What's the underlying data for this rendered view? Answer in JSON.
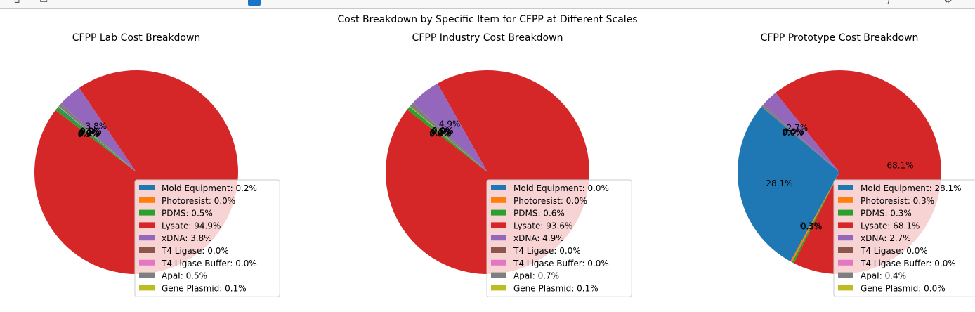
{
  "toolbar": {
    "icons": [
      "back-icon",
      "forward-icon",
      "pan-icon",
      "zoom-icon",
      "settings-icon"
    ]
  },
  "figure_title": "Cost Breakdown by Specific Item for CFPP at Different Scales",
  "colors": [
    "#1f77b4",
    "#ff7f0e",
    "#2ca02c",
    "#d62728",
    "#9467bd",
    "#8c564b",
    "#e377c2",
    "#7f7f7f",
    "#bcbd22"
  ],
  "chart_data": [
    {
      "type": "pie",
      "title": "CFPP Lab Cost Breakdown",
      "labels": [
        "Mold Equipment",
        "Photoresist",
        "PDMS",
        "Lysate",
        "xDNA",
        "T4 Ligase",
        "T4 Ligase Buffer",
        "ApaI",
        "Gene Plasmid"
      ],
      "values": [
        0.2,
        0.0,
        0.5,
        94.9,
        3.8,
        0.0,
        0.0,
        0.5,
        0.1
      ],
      "legend_entries": [
        "Mold Equipment: 0.2%",
        "Photoresist: 0.0%",
        "PDMS: 0.5%",
        "Lysate: 94.9%",
        "xDNA: 3.8%",
        "T4 Ligase: 0.0%",
        "T4 Ligase Buffer: 0.0%",
        "ApaI: 0.5%",
        "Gene Plasmid: 0.1%"
      ],
      "pct_labels": [
        "0.2%",
        "0.0%",
        "0.5%",
        "",
        "3.8%",
        "0.0%",
        "0.0%",
        "0.5%",
        "0.1%"
      ],
      "start_angle": 140,
      "legend_position": "lower-right"
    },
    {
      "type": "pie",
      "title": "CFPP Industry Cost Breakdown",
      "labels": [
        "Mold Equipment",
        "Photoresist",
        "PDMS",
        "Lysate",
        "xDNA",
        "T4 Ligase",
        "T4 Ligase Buffer",
        "ApaI",
        "Gene Plasmid"
      ],
      "values": [
        0.0,
        0.0,
        0.6,
        93.6,
        4.9,
        0.0,
        0.0,
        0.7,
        0.1
      ],
      "legend_entries": [
        "Mold Equipment: 0.0%",
        "Photoresist: 0.0%",
        "PDMS: 0.6%",
        "Lysate: 93.6%",
        "xDNA: 4.9%",
        "T4 Ligase: 0.0%",
        "T4 Ligase Buffer: 0.0%",
        "ApaI: 0.7%",
        "Gene Plasmid: 0.1%"
      ],
      "pct_labels": [
        "0.0%",
        "0.0%",
        "0.6%",
        "",
        "4.9%",
        "0.0%",
        "0.0%",
        "0.7%",
        "0.1%"
      ],
      "start_angle": 140,
      "legend_position": "lower-right"
    },
    {
      "type": "pie",
      "title": "CFPP Prototype Cost Breakdown",
      "labels": [
        "Mold Equipment",
        "Photoresist",
        "PDMS",
        "Lysate",
        "xDNA",
        "T4 Ligase",
        "T4 Ligase Buffer",
        "ApaI",
        "Gene Plasmid"
      ],
      "values": [
        28.1,
        0.3,
        0.3,
        68.1,
        2.7,
        0.0,
        0.0,
        0.4,
        0.0
      ],
      "legend_entries": [
        "Mold Equipment: 28.1%",
        "Photoresist: 0.3%",
        "PDMS: 0.3%",
        "Lysate: 68.1%",
        "xDNA: 2.7%",
        "T4 Ligase: 0.0%",
        "T4 Ligase Buffer: 0.0%",
        "ApaI: 0.4%",
        "Gene Plasmid: 0.0%"
      ],
      "pct_labels": [
        "28.1%",
        "0.3%",
        "0.3%",
        "68.1%",
        "2.7%",
        "0.0%",
        "0.0%",
        "0.4%",
        "0.0%"
      ],
      "start_angle": 140,
      "legend_position": "lower-right"
    }
  ]
}
